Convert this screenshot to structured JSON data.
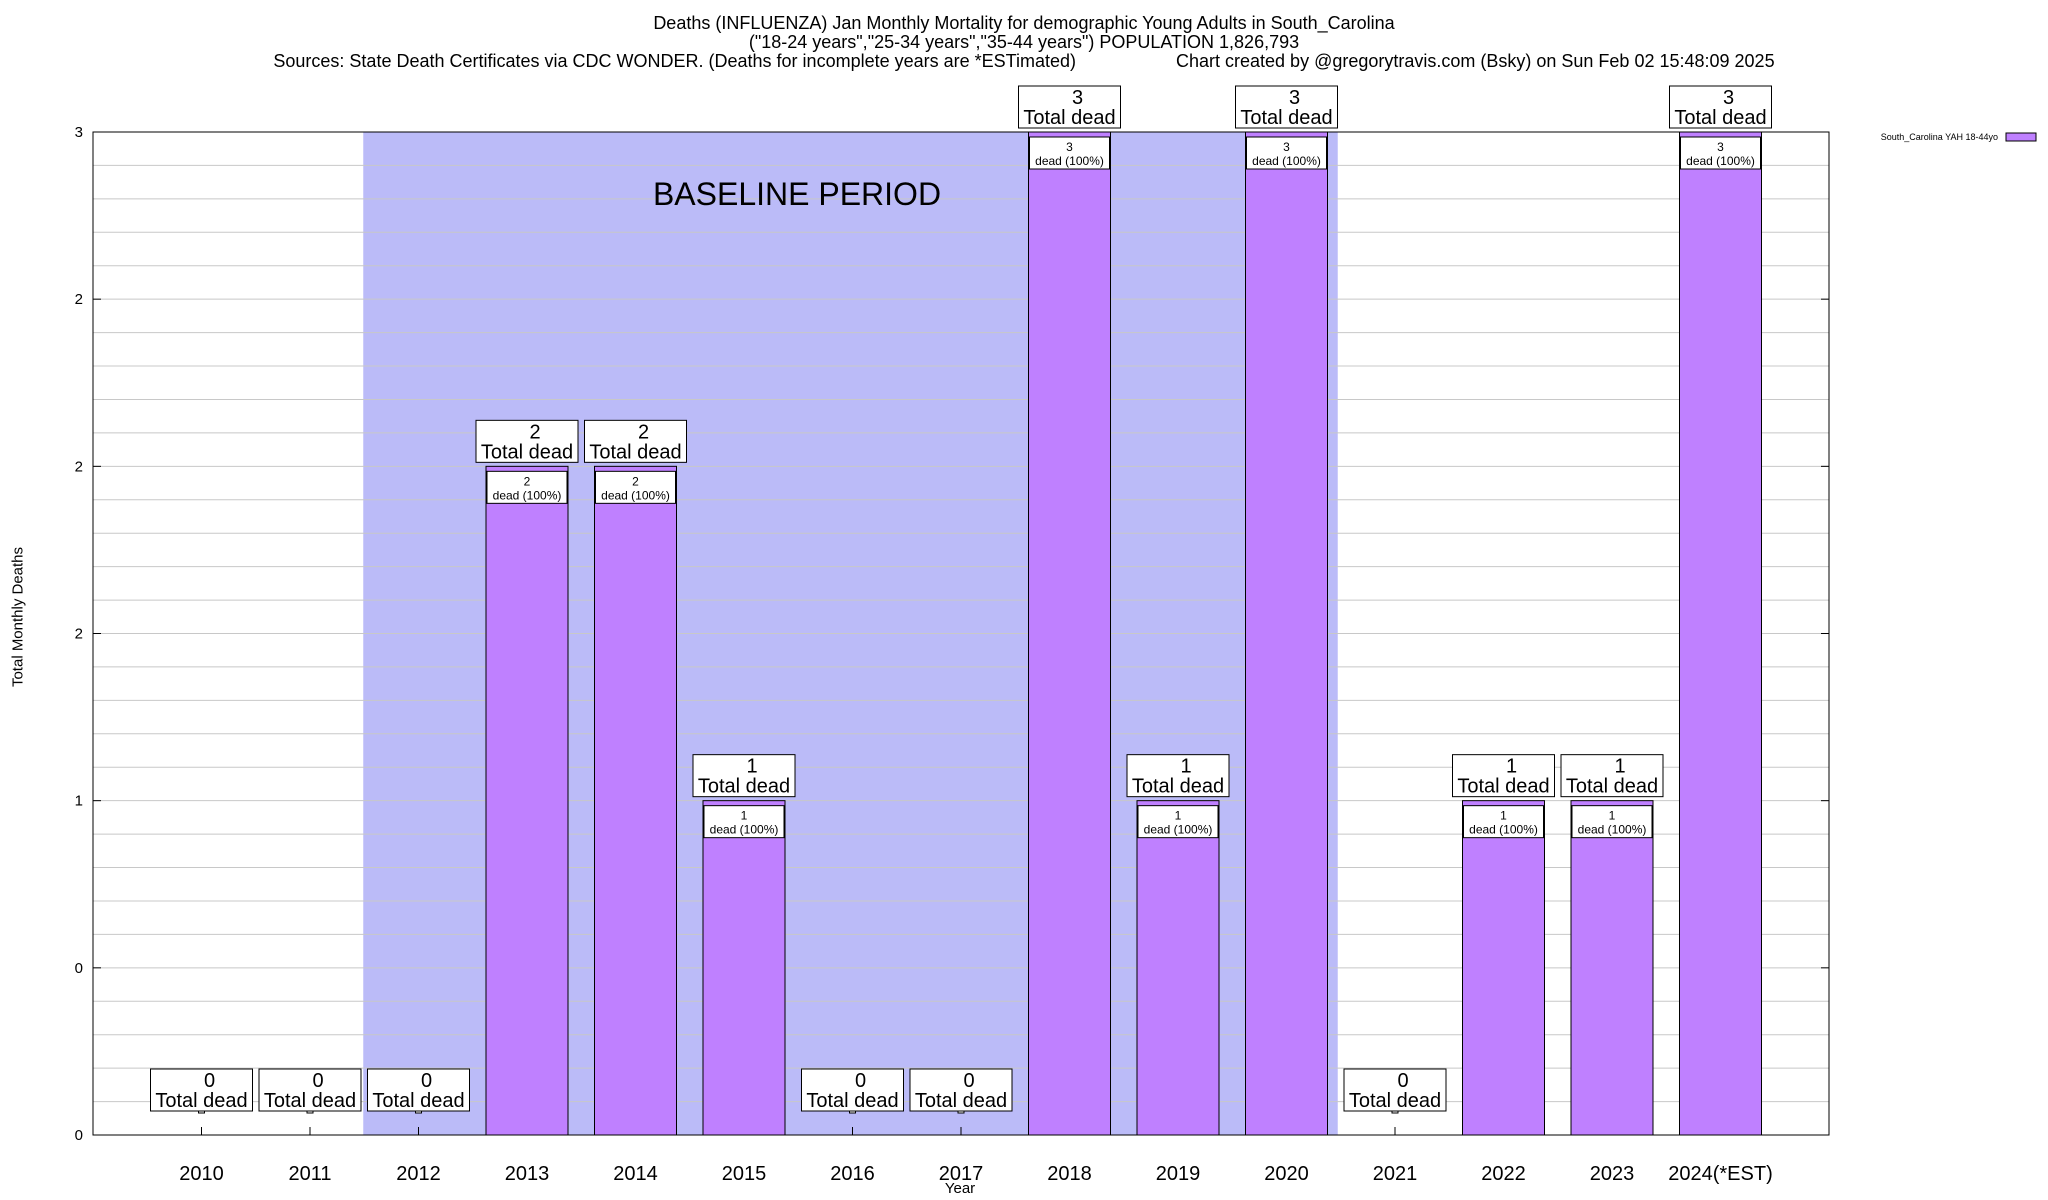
{
  "title": {
    "line1": "Deaths (INFLUENZA) Jan Monthly Mortality for demographic Young Adults in South_Carolina",
    "line2": "(\"18-24 years\",\"25-34 years\",\"35-44 years\") POPULATION 1,826,793",
    "sources": "Sources: State Death Certificates via CDC WONDER. (Deaths for incomplete years are *ESTimated)",
    "credit": "Chart created by @gregorytravis.com (Bsky) on Sun Feb 02 15:48:09 2025"
  },
  "colors": {
    "bar": "#bf80ff",
    "baseline_band": "#bbbbf8",
    "grid": "#c8c8c8"
  },
  "chart_data": {
    "type": "bar",
    "title": "Deaths (INFLUENZA) Jan Monthly Mortality for demographic Young Adults in South_Carolina",
    "xlabel": "Year",
    "ylabel": "Total Monthly Deaths",
    "ylim": [
      0,
      3
    ],
    "ytick_labels": [
      "0",
      "0",
      "1",
      "2",
      "2",
      "2",
      "3"
    ],
    "categories": [
      "2010",
      "2011",
      "2012",
      "2013",
      "2014",
      "2015",
      "2016",
      "2017",
      "2018",
      "2019",
      "2020",
      "2021",
      "2022",
      "2023",
      "2024(*EST)"
    ],
    "series": [
      {
        "name": "South_Carolina YAH 18-44yo",
        "values": [
          0,
          0,
          0,
          2,
          2,
          1,
          0,
          0,
          3,
          1,
          3,
          0,
          1,
          1,
          3
        ]
      }
    ],
    "total_label": "Total dead",
    "segment_label_suffix": "dead (100%)",
    "baseline": {
      "label": "BASELINE PERIOD",
      "from": "2012",
      "to": "2020"
    },
    "grid": true,
    "legend_position": "top-right"
  }
}
